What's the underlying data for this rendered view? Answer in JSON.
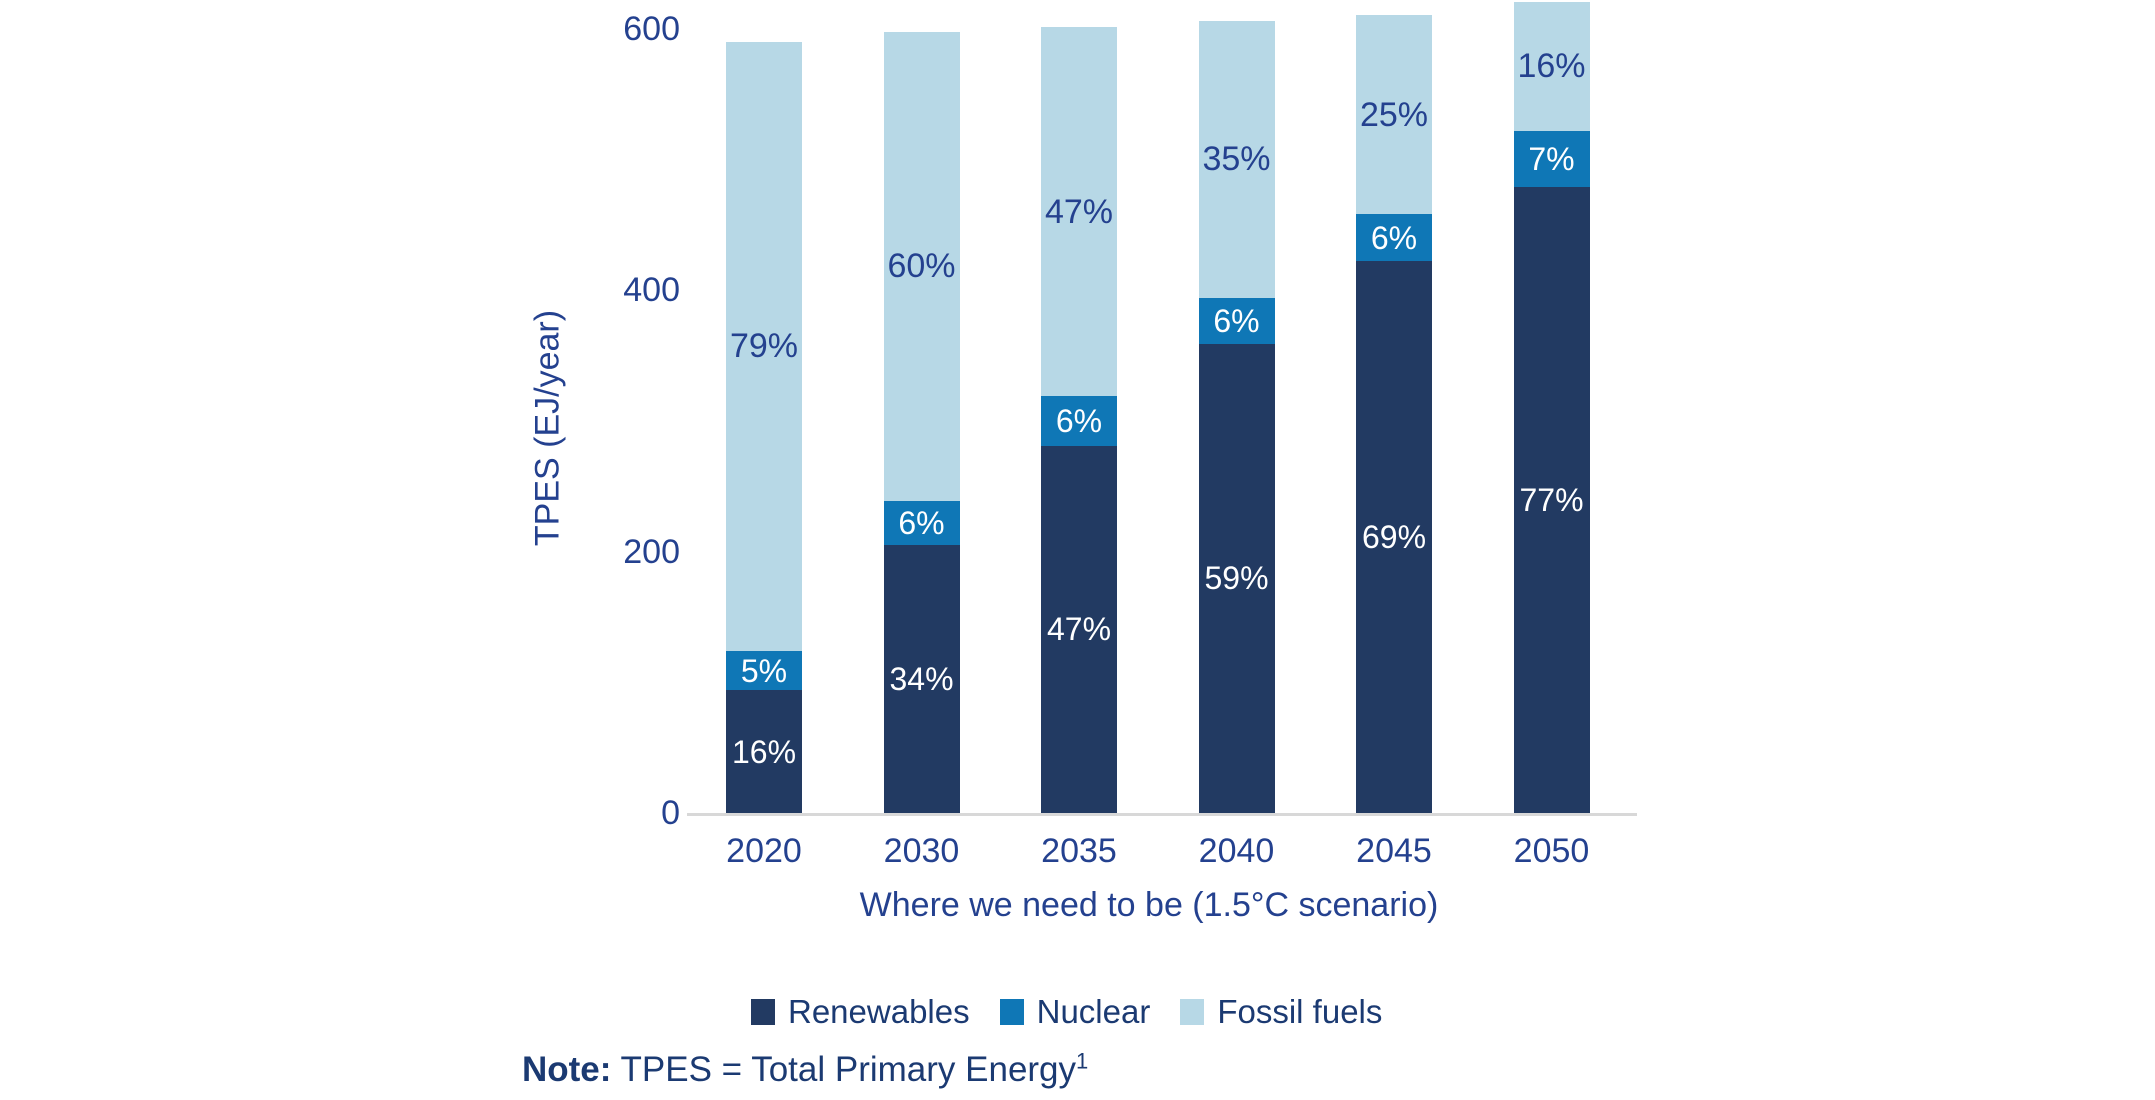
{
  "chart_data": {
    "type": "bar",
    "stacked": true,
    "title": "",
    "xlabel": "Where we need to be (1.5°C scenario)",
    "ylabel": "TPES (EJ/year)",
    "categories": [
      "2020",
      "2030",
      "2035",
      "2040",
      "2045",
      "2050"
    ],
    "series": [
      {
        "name": "Renewables",
        "color": "#223a62",
        "values_ej": [
          94,
          205,
          281,
          359,
          422,
          479
        ],
        "percent_labels": [
          "16%",
          "34%",
          "47%",
          "59%",
          "69%",
          "77%"
        ],
        "label_style": "light"
      },
      {
        "name": "Nuclear",
        "color": "#0f77b6",
        "values_ej": [
          30,
          34,
          38,
          35,
          36,
          43
        ],
        "percent_labels": [
          "5%",
          "6%",
          "6%",
          "6%",
          "6%",
          "7%"
        ],
        "label_style": "light"
      },
      {
        "name": "Fossil fuels",
        "color": "#b7d8e6",
        "values_ej": [
          466,
          358,
          282,
          212,
          152,
          98
        ],
        "percent_labels": [
          "79%",
          "60%",
          "47%",
          "35%",
          "25%",
          "16%"
        ],
        "label_style": "dark"
      }
    ],
    "totals_ej": [
      590,
      597,
      601,
      606,
      610,
      620
    ],
    "yticks": [
      0,
      200,
      400,
      600
    ],
    "ylim": [
      0,
      600
    ],
    "grid": false,
    "legend_position": "bottom",
    "axis_line_color": "#d8d8d8",
    "text_color": "#24418f"
  },
  "note": {
    "label": "Note:",
    "text": " TPES = Total Primary Energy",
    "superscript": "1"
  }
}
